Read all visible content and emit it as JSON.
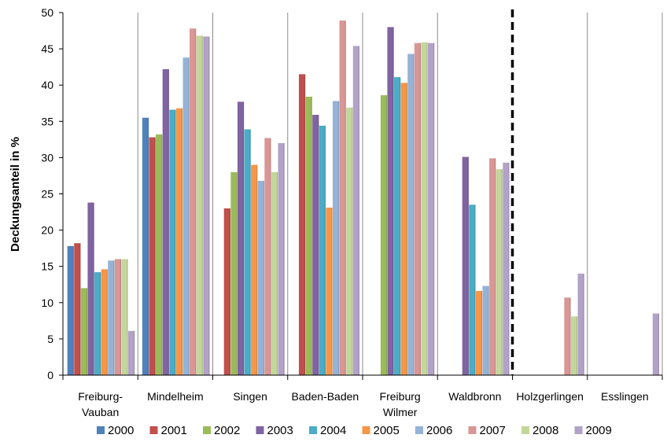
{
  "chart_data": {
    "type": "bar",
    "title": "",
    "xlabel": "",
    "ylabel": "Deckungsanteil in %",
    "ylim": [
      0,
      50
    ],
    "yticks": [
      0,
      5,
      10,
      15,
      20,
      25,
      30,
      35,
      40,
      45,
      50
    ],
    "grid": "vertical separators between categories",
    "legend_position": "bottom",
    "separator_after_category": "Waldbronn",
    "categories": [
      [
        "Freiburg-",
        "Vauban"
      ],
      [
        "Mindelheim"
      ],
      [
        "Singen"
      ],
      [
        "Baden-Baden"
      ],
      [
        "Freiburg",
        "Wilmer"
      ],
      [
        "Waldbronn"
      ],
      [
        "Holzgerlingen"
      ],
      [
        "Esslingen"
      ]
    ],
    "series": [
      {
        "name": "2000",
        "color": "#4F81BD",
        "values": [
          17.8,
          35.5,
          null,
          null,
          null,
          null,
          null,
          null
        ]
      },
      {
        "name": "2001",
        "color": "#C0504D",
        "values": [
          18.2,
          32.8,
          23.0,
          41.5,
          null,
          null,
          null,
          null
        ]
      },
      {
        "name": "2002",
        "color": "#9BBB59",
        "values": [
          12.0,
          33.2,
          28.0,
          38.4,
          38.6,
          null,
          null,
          null
        ]
      },
      {
        "name": "2003",
        "color": "#8064A2",
        "values": [
          23.8,
          42.2,
          37.7,
          35.9,
          48.0,
          30.1,
          null,
          null
        ]
      },
      {
        "name": "2004",
        "color": "#4BACC6",
        "values": [
          14.2,
          36.6,
          33.9,
          34.4,
          41.1,
          23.5,
          null,
          null
        ]
      },
      {
        "name": "2005",
        "color": "#F79646",
        "values": [
          14.6,
          36.8,
          29.0,
          23.1,
          40.3,
          11.6,
          null,
          null
        ]
      },
      {
        "name": "2006",
        "color": "#95B3D7",
        "values": [
          15.8,
          43.8,
          26.8,
          37.8,
          44.3,
          12.3,
          null,
          null
        ]
      },
      {
        "name": "2007",
        "color": "#D99694",
        "values": [
          16.0,
          47.8,
          32.7,
          48.9,
          45.8,
          29.9,
          10.7,
          null
        ]
      },
      {
        "name": "2008",
        "color": "#C3D69B",
        "values": [
          16.0,
          46.8,
          28.0,
          36.9,
          45.9,
          28.4,
          8.1,
          null
        ]
      },
      {
        "name": "2009",
        "color": "#B2A2C7",
        "values": [
          6.1,
          46.7,
          32.0,
          45.4,
          45.8,
          29.3,
          14.0,
          8.5
        ]
      }
    ]
  }
}
